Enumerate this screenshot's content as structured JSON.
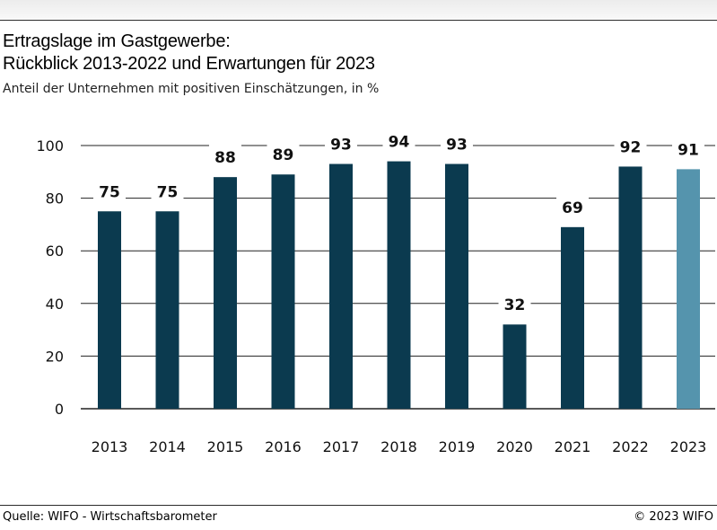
{
  "header": {
    "title_line1": "Ertragslage im Gastgewerbe:",
    "title_line2": "Rückblick 2013-2022 und Erwartungen für 2023",
    "subtitle": "Anteil der Unternehmen mit positiven Einschätzungen, in %"
  },
  "footer": {
    "source": "Quelle: WIFO - Wirtschaftsbarometer",
    "copyright": "© 2023 WIFO"
  },
  "chart_data": {
    "type": "bar",
    "categories": [
      "2013",
      "2014",
      "2015",
      "2016",
      "2017",
      "2018",
      "2019",
      "2020",
      "2021",
      "2022",
      "2023"
    ],
    "values": [
      75,
      75,
      88,
      89,
      93,
      94,
      93,
      32,
      69,
      92,
      91
    ],
    "data_labels": [
      "75",
      "75",
      "88",
      "89",
      "93",
      "94",
      "93",
      "32",
      "69",
      "92",
      "91"
    ],
    "yticks": [
      0,
      20,
      40,
      60,
      80,
      100
    ],
    "ylim": [
      0,
      100
    ],
    "grid": true,
    "colors": {
      "actual": "#0b3a4f",
      "forecast": "#5594ad",
      "grid": "#222222"
    }
  }
}
